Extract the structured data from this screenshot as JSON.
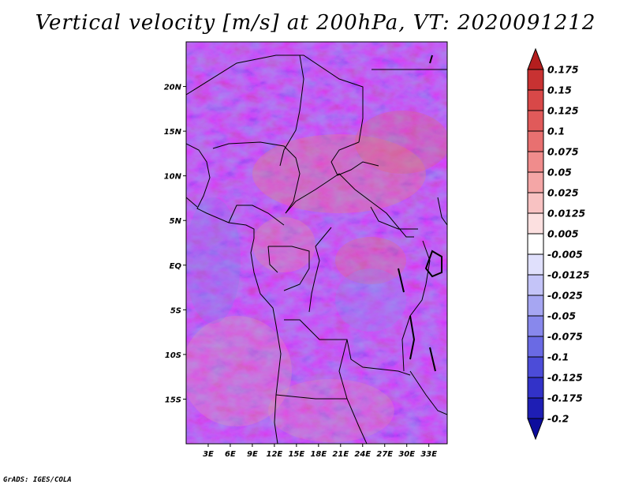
{
  "chart_data": {
    "type": "heatmap",
    "title": "Vertical velocity [m/s] at 200hPa, VT: 2020091212",
    "variable": "Vertical velocity",
    "units": "m/s",
    "level": "200hPa",
    "valid_time": "2020091212",
    "x_axis": {
      "range": [
        0,
        35.5
      ],
      "ticks": [
        3,
        6,
        9,
        12,
        15,
        18,
        21,
        24,
        27,
        30,
        33
      ],
      "tick_labels": [
        "3E",
        "6E",
        "9E",
        "12E",
        "15E",
        "18E",
        "21E",
        "24E",
        "27E",
        "30E",
        "33E"
      ]
    },
    "y_axis": {
      "range": [
        -20,
        25
      ],
      "ticks": [
        20,
        15,
        10,
        5,
        0,
        -5,
        -10,
        -15
      ],
      "tick_labels": [
        "20N",
        "15N",
        "10N",
        "5N",
        "EQ",
        "5S",
        "10S",
        "15S"
      ]
    },
    "colorbar": {
      "levels": [
        "0.175",
        "0.15",
        "0.125",
        "0.1",
        "0.075",
        "0.05",
        "0.025",
        "0.0125",
        "0.005",
        "-0.005",
        "-0.0125",
        "-0.025",
        "-0.05",
        "-0.075",
        "-0.1",
        "-0.125",
        "-0.175",
        "-0.2"
      ],
      "colors": [
        "#b41e1e",
        "#c83232",
        "#d84848",
        "#e05a5a",
        "#e87070",
        "#f08c8c",
        "#f4a6a6",
        "#f8c2c2",
        "#fce0e0",
        "#ffffff",
        "#e0e0fc",
        "#c4c4f8",
        "#a6a6f2",
        "#8888ec",
        "#6a6ae4",
        "#4c4cd8",
        "#3232c8",
        "#1e1eb4",
        "#0c0c9c"
      ]
    }
  },
  "credit": "GrADS: IGES/COLA"
}
